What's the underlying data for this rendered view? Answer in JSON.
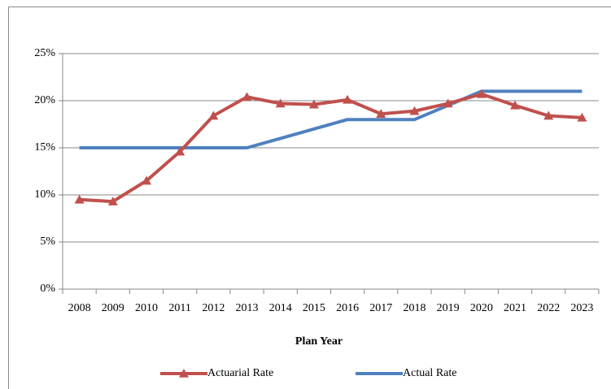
{
  "chart_data": {
    "type": "line",
    "x_label": "Plan Year",
    "categories": [
      "2008",
      "2009",
      "2010",
      "2011",
      "2012",
      "2013",
      "2014",
      "2015",
      "2016",
      "2017",
      "2018",
      "2019",
      "2020",
      "2021",
      "2022",
      "2023"
    ],
    "series": [
      {
        "name": "Actuarial Rate",
        "color": "#c0504d",
        "marker": "triangle",
        "values": [
          9.5,
          9.3,
          11.5,
          14.6,
          18.4,
          20.4,
          19.7,
          19.6,
          20.1,
          18.6,
          18.9,
          19.7,
          20.7,
          19.5,
          18.4,
          18.2
        ]
      },
      {
        "name": "Actual Rate",
        "color": "#4f81bd",
        "values": [
          15,
          15,
          15,
          15,
          15,
          15,
          16,
          17,
          18,
          18,
          18,
          19.5,
          21,
          21,
          21,
          21
        ]
      }
    ],
    "ylim": [
      0,
      25
    ],
    "yticks": [
      {
        "value": 0,
        "label": "0%"
      },
      {
        "value": 5,
        "label": "5%"
      },
      {
        "value": 10,
        "label": "10%"
      },
      {
        "value": 15,
        "label": "15%"
      },
      {
        "value": 20,
        "label": "20%"
      },
      {
        "value": 25,
        "label": "25%"
      }
    ],
    "grid": true,
    "legend": "bottom"
  }
}
